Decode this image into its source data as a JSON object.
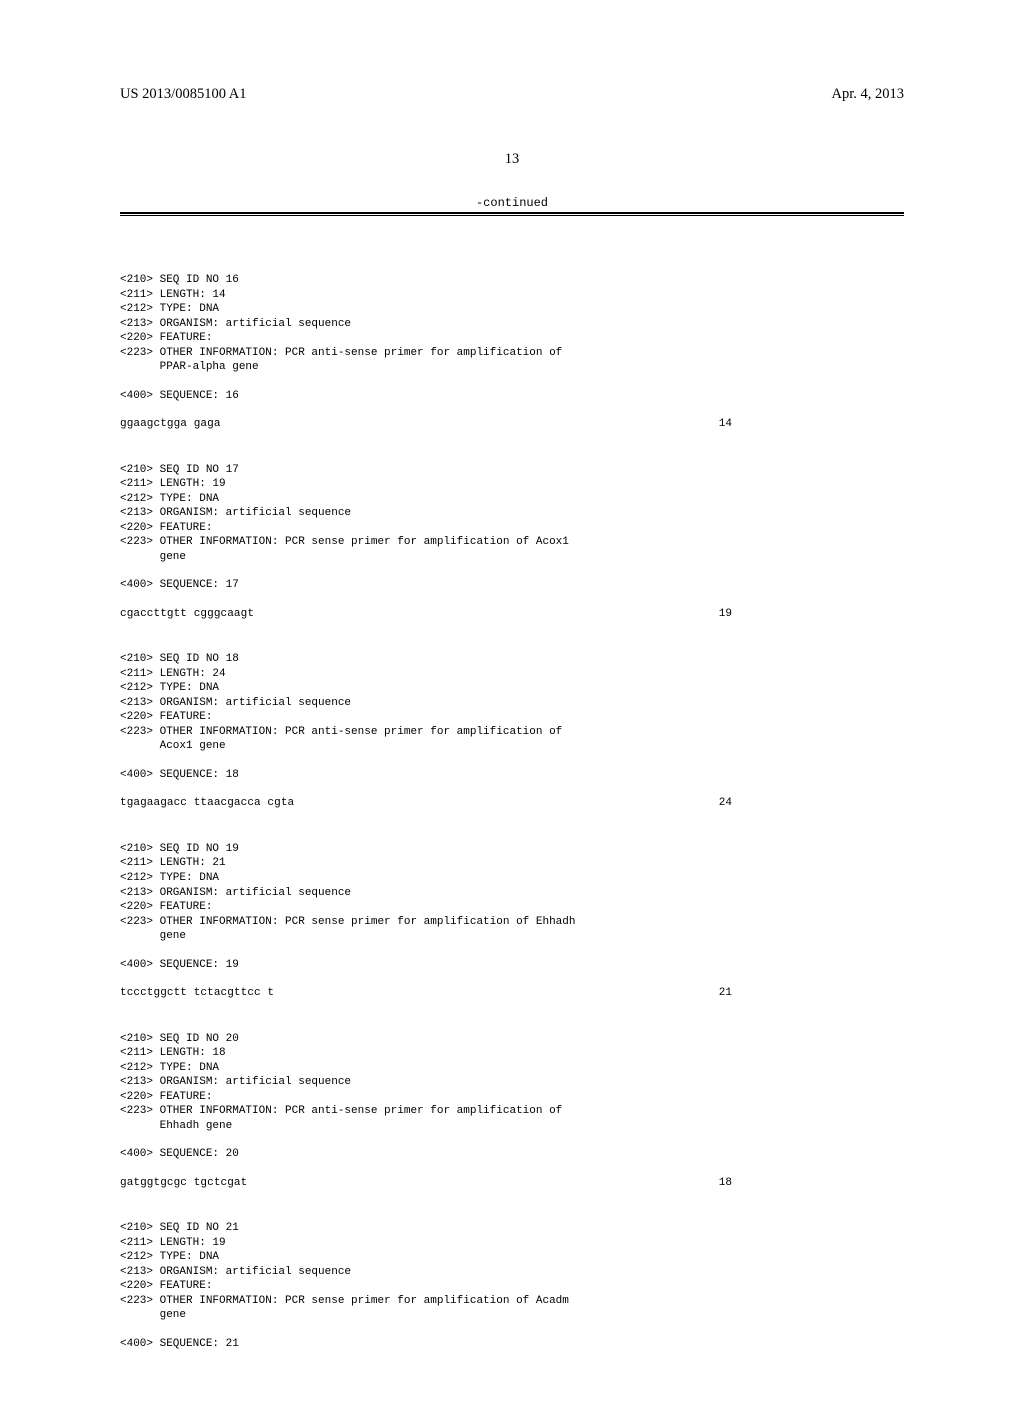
{
  "header": {
    "publication_number": "US 2013/0085100 A1",
    "publication_date": "Apr. 4, 2013",
    "page_number": "13",
    "continued_label": "-continued"
  },
  "colors": {
    "text": "#000000",
    "background": "#ffffff",
    "rule": "#000000"
  },
  "typography": {
    "serif_family": "Times New Roman",
    "mono_family": "Courier New",
    "header_fontsize_pt": 11,
    "pagenum_fontsize_pt": 11,
    "listing_fontsize_pt": 8.5
  },
  "sequences": [
    {
      "seq_id": "16",
      "length": "14",
      "type": "DNA",
      "organism": "artificial sequence",
      "feature": true,
      "other_info": "PCR anti-sense primer for amplification of",
      "other_info_cont": "PPAR-alpha gene",
      "sequence_label": "16",
      "sequence_text": "ggaagctgga gaga",
      "sequence_len": "14"
    },
    {
      "seq_id": "17",
      "length": "19",
      "type": "DNA",
      "organism": "artificial sequence",
      "feature": true,
      "other_info": "PCR sense primer for amplification of Acox1",
      "other_info_cont": "gene",
      "sequence_label": "17",
      "sequence_text": "cgaccttgtt cgggcaagt",
      "sequence_len": "19"
    },
    {
      "seq_id": "18",
      "length": "24",
      "type": "DNA",
      "organism": "artificial sequence",
      "feature": true,
      "other_info": "PCR anti-sense primer for amplification of",
      "other_info_cont": "Acox1 gene",
      "sequence_label": "18",
      "sequence_text": "tgagaagacc ttaacgacca cgta",
      "sequence_len": "24"
    },
    {
      "seq_id": "19",
      "length": "21",
      "type": "DNA",
      "organism": "artificial sequence",
      "feature": true,
      "other_info": "PCR sense primer for amplification of Ehhadh",
      "other_info_cont": "gene",
      "sequence_label": "19",
      "sequence_text": "tccctggctt tctacgttcc t",
      "sequence_len": "21"
    },
    {
      "seq_id": "20",
      "length": "18",
      "type": "DNA",
      "organism": "artificial sequence",
      "feature": true,
      "other_info": "PCR anti-sense primer for amplification of",
      "other_info_cont": "Ehhadh gene",
      "sequence_label": "20",
      "sequence_text": "gatggtgcgc tgctcgat",
      "sequence_len": "18"
    },
    {
      "seq_id": "21",
      "length": "19",
      "type": "DNA",
      "organism": "artificial sequence",
      "feature": true,
      "other_info": "PCR sense primer for amplification of Acadm",
      "other_info_cont": "gene",
      "sequence_label": "21",
      "sequence_text": "",
      "sequence_len": ""
    }
  ],
  "field_labels": {
    "seq_id_prefix": "<210> SEQ ID NO ",
    "length_prefix": "<211> LENGTH: ",
    "type_prefix": "<212> TYPE: ",
    "organism_prefix": "<213> ORGANISM: ",
    "feature_prefix": "<220> FEATURE:",
    "other_info_prefix": "<223> OTHER INFORMATION: ",
    "other_info_indent": "      ",
    "sequence_prefix": "<400> SEQUENCE: "
  }
}
